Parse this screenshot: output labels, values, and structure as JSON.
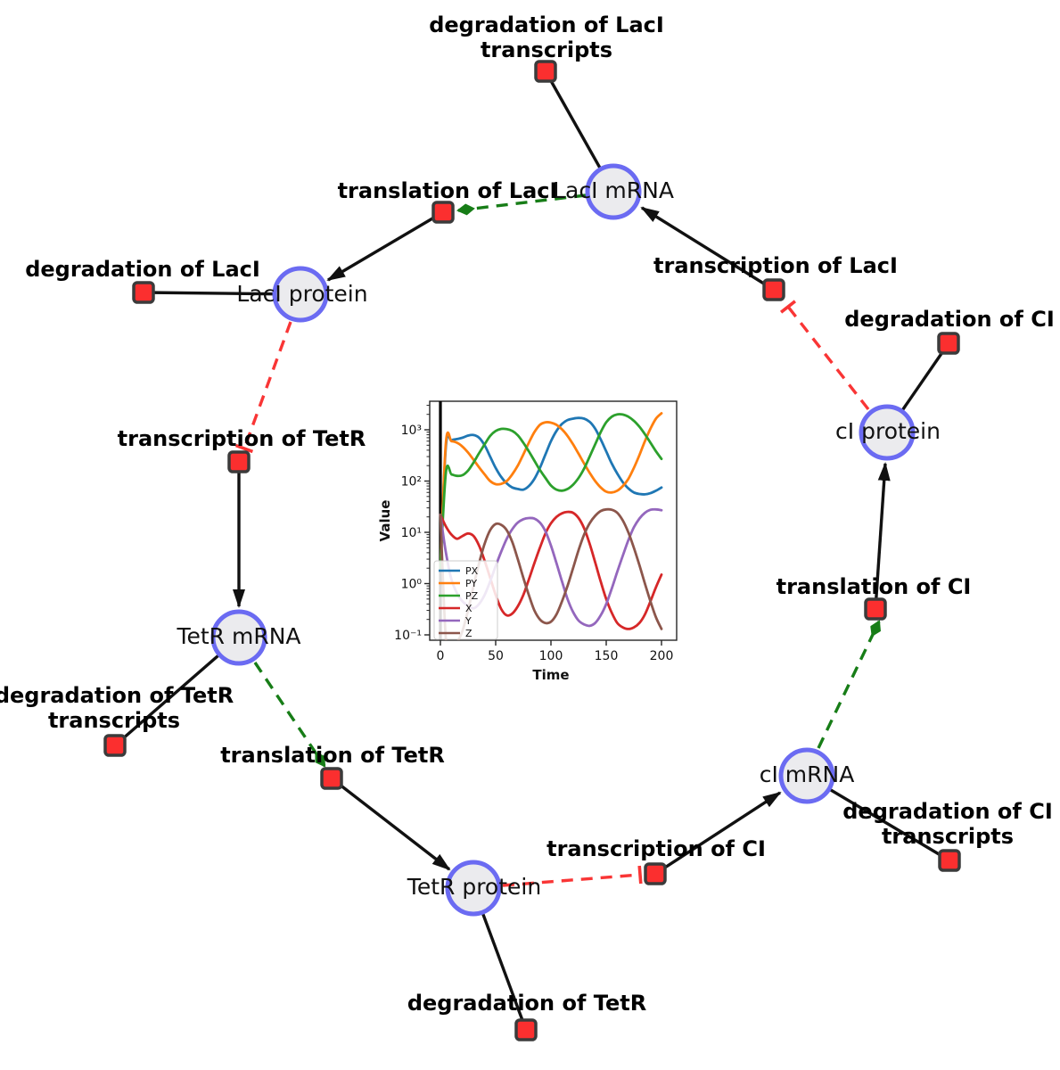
{
  "network": {
    "species": [
      {
        "label": "LacI mRNA"
      },
      {
        "label": "LacI protein"
      },
      {
        "label": "TetR mRNA"
      },
      {
        "label": "TetR protein"
      },
      {
        "label": "cI mRNA"
      },
      {
        "label": "cI protein"
      }
    ],
    "reactions": [
      {
        "lines": [
          "degradation of LacI",
          "transcripts"
        ]
      },
      {
        "lines": [
          "translation of LacI"
        ]
      },
      {
        "lines": [
          "transcription of LacI"
        ]
      },
      {
        "lines": [
          "degradation of LacI"
        ]
      },
      {
        "lines": [
          "transcription of TetR"
        ]
      },
      {
        "lines": [
          "degradation of TetR",
          "transcripts"
        ]
      },
      {
        "lines": [
          "translation of TetR"
        ]
      },
      {
        "lines": [
          "degradation of TetR"
        ]
      },
      {
        "lines": [
          "transcription of CI"
        ]
      },
      {
        "lines": [
          "degradation of CI",
          "transcripts"
        ]
      },
      {
        "lines": [
          "translation of CI"
        ]
      },
      {
        "lines": [
          "degradation of CI"
        ]
      }
    ],
    "colors": {
      "species_fill": "#ebebee",
      "species_stroke": "#6b6bf2",
      "reaction_fill": "#fb2f2f",
      "reaction_stroke": "#3b3b3b",
      "edge_black": "#111111",
      "edge_activation": "#177d17",
      "edge_inhibition": "#f93535"
    }
  },
  "chart_data": {
    "type": "line",
    "title": "",
    "xlabel": "Time",
    "ylabel": "Value",
    "x_ticks": [
      0,
      50,
      100,
      150,
      200
    ],
    "y_ticks": [
      0.1,
      1,
      10,
      100,
      1000
    ],
    "y_tick_labels": [
      "10⁻¹",
      "10⁰",
      "10¹",
      "10²",
      "10³"
    ],
    "y_scale": "log",
    "xlim": [
      -10,
      214
    ],
    "ylim": [
      0.079,
      3600
    ],
    "grid": false,
    "legend_position": "lower left",
    "t_start": 0,
    "t_step": 5,
    "annotations": [
      {
        "type": "vline",
        "x": 0,
        "color": "#000000",
        "width": 3.2
      }
    ],
    "series": [
      {
        "name": "PX",
        "color": "#1f77b4",
        "values": [
          2,
          480,
          620,
          660,
          700,
          770,
          790,
          700,
          500,
          300,
          180,
          120,
          90,
          75,
          70,
          68,
          80,
          110,
          180,
          330,
          600,
          950,
          1300,
          1550,
          1650,
          1700,
          1650,
          1430,
          1050,
          650,
          380,
          220,
          140,
          95,
          72,
          60,
          56,
          55,
          58,
          65,
          75
        ]
      },
      {
        "name": "PY",
        "color": "#ff7f0e",
        "values": [
          2,
          570,
          600,
          560,
          470,
          360,
          260,
          185,
          135,
          100,
          87,
          88,
          100,
          135,
          200,
          330,
          560,
          900,
          1250,
          1400,
          1380,
          1250,
          1020,
          760,
          520,
          340,
          220,
          145,
          100,
          75,
          62,
          60,
          65,
          80,
          110,
          180,
          320,
          600,
          1050,
          1650,
          2100
        ]
      },
      {
        "name": "PZ",
        "color": "#2ca02c",
        "values": [
          2,
          148,
          135,
          126,
          130,
          160,
          230,
          350,
          520,
          760,
          950,
          1040,
          1030,
          950,
          780,
          560,
          380,
          250,
          165,
          115,
          82,
          68,
          65,
          70,
          85,
          115,
          175,
          300,
          520,
          900,
          1400,
          1800,
          2000,
          1980,
          1800,
          1500,
          1150,
          820,
          560,
          380,
          270
        ]
      },
      {
        "name": "X",
        "color": "#d62728",
        "values": [
          22,
          13,
          9,
          7.5,
          8.5,
          9.5,
          8.5,
          5.5,
          2.8,
          1.3,
          0.6,
          0.32,
          0.24,
          0.26,
          0.36,
          0.6,
          1.2,
          2.5,
          5,
          9.5,
          15,
          20,
          23.5,
          25,
          24,
          19,
          12,
          6,
          2.6,
          1.1,
          0.5,
          0.27,
          0.17,
          0.14,
          0.13,
          0.14,
          0.17,
          0.25,
          0.45,
          0.85,
          1.5
        ]
      },
      {
        "name": "Y",
        "color": "#9467bd",
        "values": [
          22,
          4,
          1.2,
          0.65,
          0.45,
          0.37,
          0.33,
          0.4,
          0.6,
          1.1,
          2.2,
          4.2,
          7.5,
          11.5,
          15.5,
          18,
          19,
          18.5,
          15.5,
          10.5,
          5.5,
          2.5,
          1.1,
          0.5,
          0.28,
          0.19,
          0.16,
          0.15,
          0.17,
          0.24,
          0.4,
          0.8,
          1.7,
          3.5,
          7,
          12.5,
          18.5,
          24,
          27.5,
          28,
          27
        ]
      },
      {
        "name": "Z",
        "color": "#8c564b",
        "values": [
          22,
          0.08,
          0.05,
          0.07,
          0.12,
          0.3,
          0.9,
          2.5,
          6,
          11,
          14.5,
          14,
          11,
          6.5,
          3,
          1.3,
          0.6,
          0.3,
          0.2,
          0.17,
          0.18,
          0.25,
          0.45,
          0.9,
          2,
          4.5,
          9,
          15,
          21,
          26,
          28,
          27.5,
          24,
          17,
          10,
          5,
          2.3,
          1,
          0.45,
          0.22,
          0.13
        ]
      }
    ]
  }
}
